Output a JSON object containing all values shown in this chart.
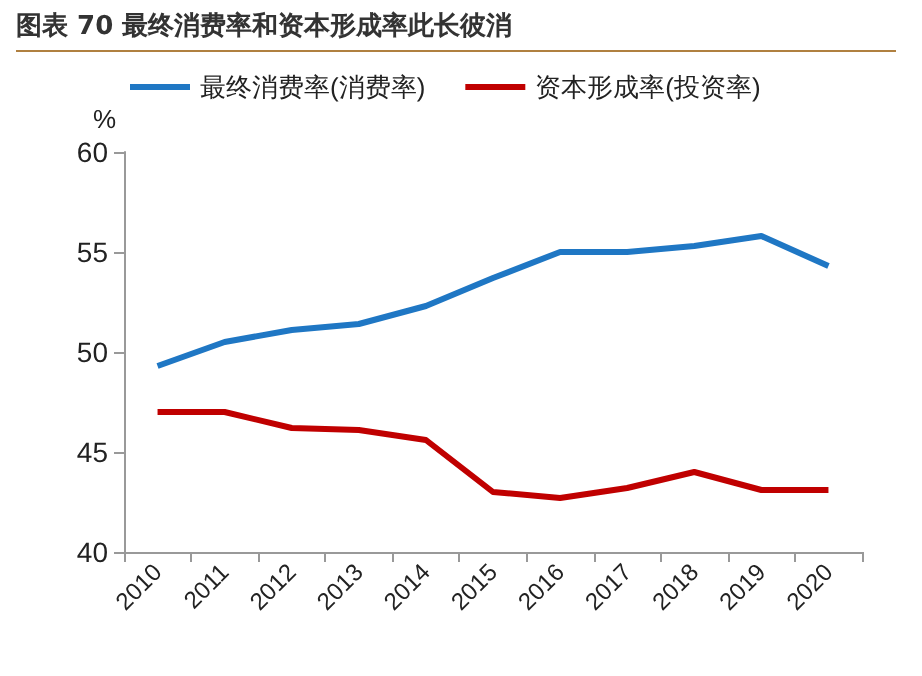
{
  "chart_data": {
    "type": "line",
    "title": "图表 70 最终消费率和资本形成率此长彼消",
    "ylabel": "%",
    "categories": [
      "2010",
      "2011",
      "2012",
      "2013",
      "2014",
      "2015",
      "2016",
      "2017",
      "2018",
      "2019",
      "2020"
    ],
    "series": [
      {
        "name": "最终消费率(消费率)",
        "color": "#1f77c4",
        "values": [
          49.3,
          50.5,
          51.1,
          51.4,
          52.3,
          53.7,
          55.0,
          55.0,
          55.3,
          55.8,
          54.3
        ]
      },
      {
        "name": "资本形成率(投资率)",
        "color": "#c00000",
        "values": [
          47.0,
          47.0,
          46.2,
          46.1,
          45.6,
          43.0,
          42.7,
          43.2,
          44.0,
          43.1,
          43.1
        ]
      }
    ],
    "ylim": [
      40,
      60
    ],
    "yticks": [
      40,
      45,
      50,
      55,
      60
    ],
    "grid": false,
    "legend": "top",
    "marker": "none",
    "line_style": "solid"
  }
}
